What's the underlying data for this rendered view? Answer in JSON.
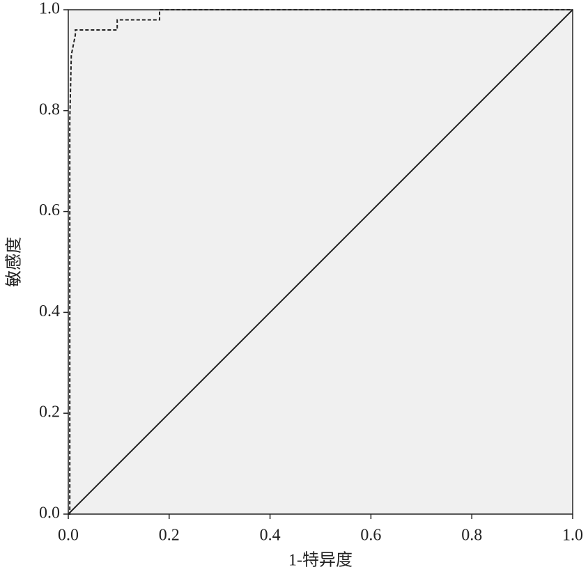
{
  "chart_data": {
    "type": "line",
    "x_label": "1-特异度",
    "y_label": "敏感度",
    "xlim": [
      0,
      1
    ],
    "ylim": [
      0,
      1
    ],
    "xticks": [
      {
        "value": 0,
        "label": "0.0"
      },
      {
        "value": 0.2,
        "label": "0.2"
      },
      {
        "value": 0.4,
        "label": "0.4"
      },
      {
        "value": 0.6,
        "label": "0.6"
      },
      {
        "value": 0.8,
        "label": "0.8"
      },
      {
        "value": 1,
        "label": "1.0"
      }
    ],
    "yticks": [
      {
        "value": 0,
        "label": "0.0"
      },
      {
        "value": 0.2,
        "label": "0.2"
      },
      {
        "value": 0.4,
        "label": "0.4"
      },
      {
        "value": 0.6,
        "label": "0.6"
      },
      {
        "value": 0.8,
        "label": "0.8"
      },
      {
        "value": 1,
        "label": "1.0"
      }
    ],
    "background": "#f0f0f0",
    "series": [
      {
        "color": "#222222",
        "dashed": true,
        "x": [
          0,
          0.003,
          0.003,
          0.006,
          0.014,
          0.014,
          0.097,
          0.097,
          0.181,
          0.181,
          1.0
        ],
        "values": [
          0,
          0,
          0.78,
          0.91,
          0.95,
          0.96,
          0.96,
          0.98,
          0.98,
          1.0,
          1.0
        ]
      },
      {
        "color": "#222222",
        "dashed": false,
        "x": [
          0,
          1
        ],
        "values": [
          0,
          1
        ]
      }
    ]
  }
}
